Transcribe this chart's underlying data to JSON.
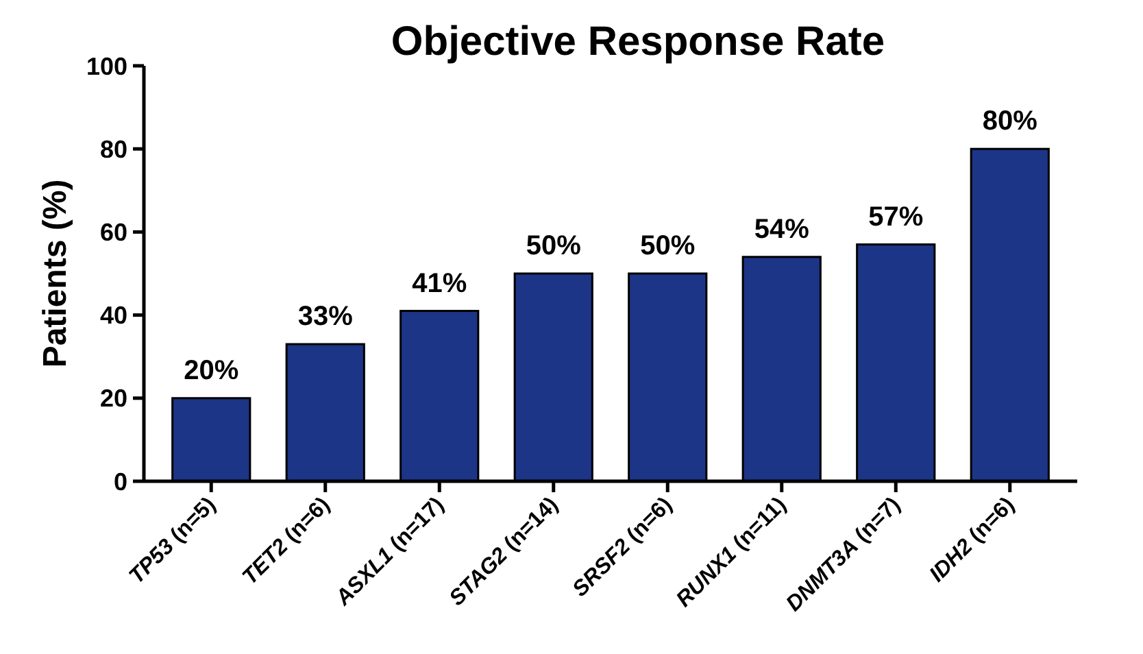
{
  "chart_data": {
    "type": "bar",
    "title": "Objective Response Rate",
    "ylabel": "Patients (%)",
    "categories": [
      "TP53 (n=5)",
      "TET2 (n=6)",
      "ASXL1 (n=17)",
      "STAG2 (n=14)",
      "SRSF2 (n=6)",
      "RUNX1 (n=11)",
      "DNMT3A (n=7)",
      "IDH2 (n=6)"
    ],
    "values": [
      20,
      33,
      41,
      50,
      50,
      54,
      57,
      80
    ],
    "value_labels": [
      "20%",
      "33%",
      "41%",
      "50%",
      "50%",
      "54%",
      "57%",
      "80%"
    ],
    "color": "#1c3587",
    "ylim": [
      0,
      100
    ],
    "yticks": [
      0,
      20,
      40,
      60,
      80,
      100
    ],
    "grid": false
  }
}
